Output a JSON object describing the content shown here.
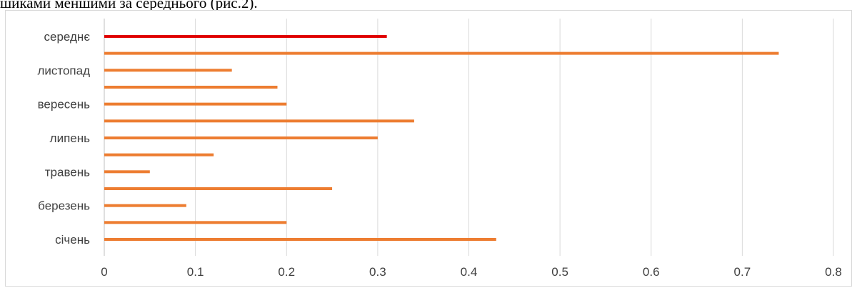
{
  "document": {
    "visible_text_line": "шиками меншими за середнього (рис.2)."
  },
  "chart_data": {
    "type": "bar",
    "orientation": "horizontal",
    "categories": [
      "січень",
      "",
      "березень",
      "",
      "травень",
      "",
      "липень",
      "",
      "вересень",
      "",
      "листопад",
      "",
      "середнє"
    ],
    "values": [
      0.43,
      0.2,
      0.09,
      0.25,
      0.05,
      0.12,
      0.3,
      0.34,
      0.2,
      0.19,
      0.14,
      0.74,
      0.31
    ],
    "bar_colors": [
      "#ED7D31",
      "#ED7D31",
      "#ED7D31",
      "#ED7D31",
      "#ED7D31",
      "#ED7D31",
      "#ED7D31",
      "#ED7D31",
      "#ED7D31",
      "#ED7D31",
      "#ED7D31",
      "#ED7D31",
      "#E00000"
    ],
    "xlim": [
      0,
      0.8
    ],
    "xticks": [
      "0",
      "0.1",
      "0.2",
      "0.3",
      "0.4",
      "0.5",
      "0.6",
      "0.7",
      "0.8"
    ],
    "xtick_values": [
      0,
      0.1,
      0.2,
      0.3,
      0.4,
      0.5,
      0.6,
      0.7,
      0.8
    ],
    "grid": "vertical",
    "colors": {
      "gridline": "#D9D9D9",
      "axis": "#BFBFBF",
      "main": "#ED7D31",
      "highlight": "#E00000"
    }
  }
}
